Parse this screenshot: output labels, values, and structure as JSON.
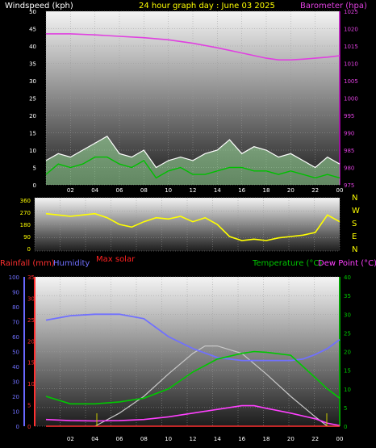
{
  "header": {
    "wind_label": "Windspeed (kph)",
    "title": "24 hour graph day : June 03 2025",
    "baro_label": "Barometer (hpa)"
  },
  "direction_labels": [
    "N",
    "W",
    "S",
    "E",
    "N"
  ],
  "max_solar_label": "Max solar",
  "bottom_labels": {
    "rainfall": "Rainfall (mm)",
    "humidity": "Humidity",
    "temperature": "Temperature (°C)",
    "dewpoint": "Dew Point (°C)"
  },
  "colors": {
    "wind_avg": "#00c000",
    "wind_gust": "#ffffff",
    "wind_fill": "#9ce09c",
    "barometer": "#e040e0",
    "direction": "#ffff00",
    "humidity": "#7070ff",
    "temperature": "#00c800",
    "dewpoint": "#ff40ff",
    "rainfall": "#ff3030",
    "solar": "#c8c8c8",
    "max_solar": "#ff2020"
  },
  "chart_data": [
    {
      "type": "line",
      "name": "wind-and-barometer",
      "x_ticks": [
        "02",
        "04",
        "06",
        "08",
        "10",
        "12",
        "14",
        "16",
        "18",
        "20",
        "22",
        "00"
      ],
      "y_left": {
        "label": "Windspeed (kph)",
        "ylim": [
          0,
          50
        ],
        "ticks": [
          0,
          5,
          10,
          15,
          20,
          25,
          30,
          35,
          40,
          45,
          50
        ]
      },
      "y_right": {
        "label": "Barometer (hpa)",
        "ylim": [
          975,
          1025
        ],
        "ticks": [
          975,
          980,
          985,
          990,
          995,
          1000,
          1005,
          1010,
          1015,
          1020,
          1025
        ]
      },
      "series": [
        {
          "name": "Barometer",
          "axis": "right",
          "x": [
            0,
            2,
            4,
            6,
            8,
            10,
            12,
            14,
            16,
            18,
            19,
            20,
            21,
            22,
            23,
            24
          ],
          "values": [
            1018.5,
            1018.5,
            1018.2,
            1017.8,
            1017.4,
            1016.8,
            1015.8,
            1014.5,
            1013.0,
            1011.5,
            1011.0,
            1011.0,
            1011.2,
            1011.5,
            1011.8,
            1012.2
          ]
        },
        {
          "name": "Wind gust",
          "axis": "left",
          "x": [
            0,
            1,
            2,
            3,
            4,
            5,
            6,
            7,
            8,
            9,
            10,
            11,
            12,
            13,
            14,
            15,
            16,
            17,
            18,
            19,
            20,
            21,
            22,
            23,
            24
          ],
          "values": [
            7,
            9,
            8,
            10,
            12,
            14,
            9,
            8,
            10,
            5,
            7,
            8,
            7,
            9,
            10,
            13,
            9,
            11,
            10,
            8,
            9,
            7,
            5,
            8,
            6
          ]
        },
        {
          "name": "Wind average",
          "axis": "left",
          "x": [
            0,
            1,
            2,
            3,
            4,
            5,
            6,
            7,
            8,
            9,
            10,
            11,
            12,
            13,
            14,
            15,
            16,
            17,
            18,
            19,
            20,
            21,
            22,
            23,
            24
          ],
          "values": [
            3,
            6,
            5,
            6,
            8,
            8,
            6,
            5,
            7,
            2,
            4,
            5,
            3,
            3,
            4,
            5,
            5,
            4,
            4,
            3,
            4,
            3,
            2,
            3,
            2
          ]
        }
      ]
    },
    {
      "type": "line",
      "name": "wind-direction",
      "y_ticks": [
        0,
        90,
        180,
        270,
        360
      ],
      "ylim": [
        0,
        360
      ],
      "series": [
        {
          "name": "Direction",
          "x": [
            0,
            1,
            2,
            3,
            4,
            5,
            6,
            7,
            8,
            9,
            10,
            11,
            12,
            13,
            14,
            15,
            16,
            17,
            18,
            19,
            20,
            21,
            22,
            23,
            24
          ],
          "values": [
            260,
            250,
            240,
            250,
            260,
            230,
            180,
            160,
            200,
            230,
            220,
            240,
            200,
            230,
            180,
            90,
            60,
            70,
            60,
            80,
            90,
            100,
            120,
            250,
            200
          ]
        }
      ]
    },
    {
      "type": "line",
      "name": "temperature-humidity-rain",
      "x_ticks": [
        "02",
        "04",
        "06",
        "08",
        "10",
        "12",
        "14",
        "16",
        "18",
        "20",
        "22",
        "00"
      ],
      "y_humidity": {
        "label": "Humidity",
        "ylim": [
          0,
          100
        ],
        "ticks": [
          0,
          10,
          20,
          30,
          40,
          50,
          60,
          70,
          80,
          90,
          100
        ]
      },
      "y_rainfall": {
        "label": "Rainfall (mm)",
        "ylim": [
          0,
          35
        ],
        "ticks": [
          0,
          5,
          10,
          15,
          20,
          25,
          30,
          35
        ]
      },
      "y_temperature": {
        "label": "Temperature (°C)",
        "ylim": [
          0,
          40
        ],
        "ticks": [
          0,
          5,
          10,
          15,
          20,
          25,
          30,
          35,
          40
        ]
      },
      "series": [
        {
          "name": "Humidity",
          "axis": "humidity",
          "x": [
            0,
            2,
            4,
            6,
            8,
            10,
            12,
            14,
            16,
            18,
            20,
            21,
            22,
            23,
            24
          ],
          "values": [
            71,
            74,
            75,
            75,
            72,
            60,
            52,
            46,
            44,
            44,
            44,
            45,
            48,
            52,
            58
          ]
        },
        {
          "name": "Temperature",
          "axis": "temperature",
          "x": [
            0,
            2,
            4,
            6,
            8,
            10,
            12,
            14,
            16,
            17,
            18,
            20,
            21,
            22,
            23,
            24
          ],
          "values": [
            8,
            6,
            6,
            6.5,
            7.5,
            10,
            14.5,
            18,
            19.5,
            20,
            19.8,
            19,
            16,
            13,
            10,
            7.5
          ]
        },
        {
          "name": "Dew Point",
          "axis": "temperature",
          "x": [
            0,
            2,
            4,
            6,
            8,
            10,
            12,
            14,
            16,
            17,
            18,
            20,
            22,
            23,
            24
          ],
          "values": [
            1.8,
            1.5,
            1.4,
            1.5,
            1.8,
            2.5,
            3.5,
            4.5,
            5.5,
            5.5,
            4.8,
            3.5,
            2.0,
            0.8,
            0.2
          ]
        },
        {
          "name": "Solar",
          "axis": "temperature",
          "x": [
            4,
            6,
            8,
            10,
            12,
            13,
            14,
            16,
            18,
            20,
            22,
            23,
            24
          ],
          "values": [
            0,
            3.5,
            8,
            14,
            19.5,
            21.5,
            21.5,
            19.5,
            14,
            8,
            2.5,
            0,
            0
          ]
        },
        {
          "name": "Rainfall",
          "axis": "rainfall",
          "x": [
            0,
            24
          ],
          "values": [
            0,
            0
          ]
        }
      ]
    }
  ]
}
